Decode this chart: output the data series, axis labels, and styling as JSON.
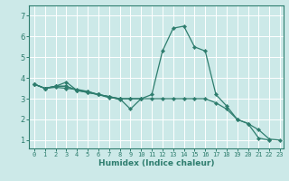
{
  "xlabel": "Humidex (Indice chaleur)",
  "bg_color": "#cce9e8",
  "grid_color": "#ffffff",
  "line_color": "#2e7d6e",
  "xlim": [
    -0.5,
    23.3
  ],
  "ylim": [
    0.6,
    7.5
  ],
  "xticks": [
    0,
    1,
    2,
    3,
    4,
    5,
    6,
    7,
    8,
    9,
    10,
    11,
    12,
    13,
    14,
    15,
    16,
    17,
    18,
    19,
    20,
    21,
    22,
    23
  ],
  "yticks": [
    1,
    2,
    3,
    4,
    5,
    6,
    7
  ],
  "series": [
    {
      "x": [
        0,
        1,
        2,
        3,
        4,
        5,
        6,
        7,
        8,
        9,
        10,
        11,
        12,
        13,
        14,
        15,
        16,
        17,
        18,
        19,
        20,
        21,
        22
      ],
      "y": [
        3.7,
        3.5,
        3.6,
        3.8,
        3.4,
        3.35,
        3.2,
        3.1,
        3.0,
        2.5,
        3.0,
        3.2,
        5.3,
        6.4,
        6.5,
        5.5,
        5.3,
        3.2,
        2.65,
        2.0,
        1.8,
        1.1,
        1.0
      ]
    },
    {
      "x": [
        0,
        1,
        2,
        3,
        4,
        5,
        6,
        7,
        8
      ],
      "y": [
        3.7,
        3.5,
        3.6,
        3.6,
        3.4,
        3.3,
        3.2,
        3.1,
        2.95
      ]
    },
    {
      "x": [
        0,
        1,
        2,
        3,
        4,
        5,
        6,
        7,
        8,
        9,
        10
      ],
      "y": [
        3.7,
        3.5,
        3.6,
        3.6,
        3.4,
        3.3,
        3.2,
        3.1,
        3.0,
        3.0,
        3.0
      ]
    },
    {
      "x": [
        0,
        1,
        2,
        3,
        4,
        5,
        6,
        7,
        8,
        9,
        10,
        11,
        12,
        13,
        14,
        15,
        16,
        17,
        18,
        19,
        20,
        21,
        22,
        23
      ],
      "y": [
        3.7,
        3.5,
        3.55,
        3.5,
        3.45,
        3.35,
        3.2,
        3.05,
        3.0,
        3.0,
        3.0,
        3.0,
        3.0,
        3.0,
        3.0,
        3.0,
        3.0,
        2.8,
        2.5,
        2.0,
        1.8,
        1.5,
        1.05,
        1.0
      ]
    }
  ]
}
